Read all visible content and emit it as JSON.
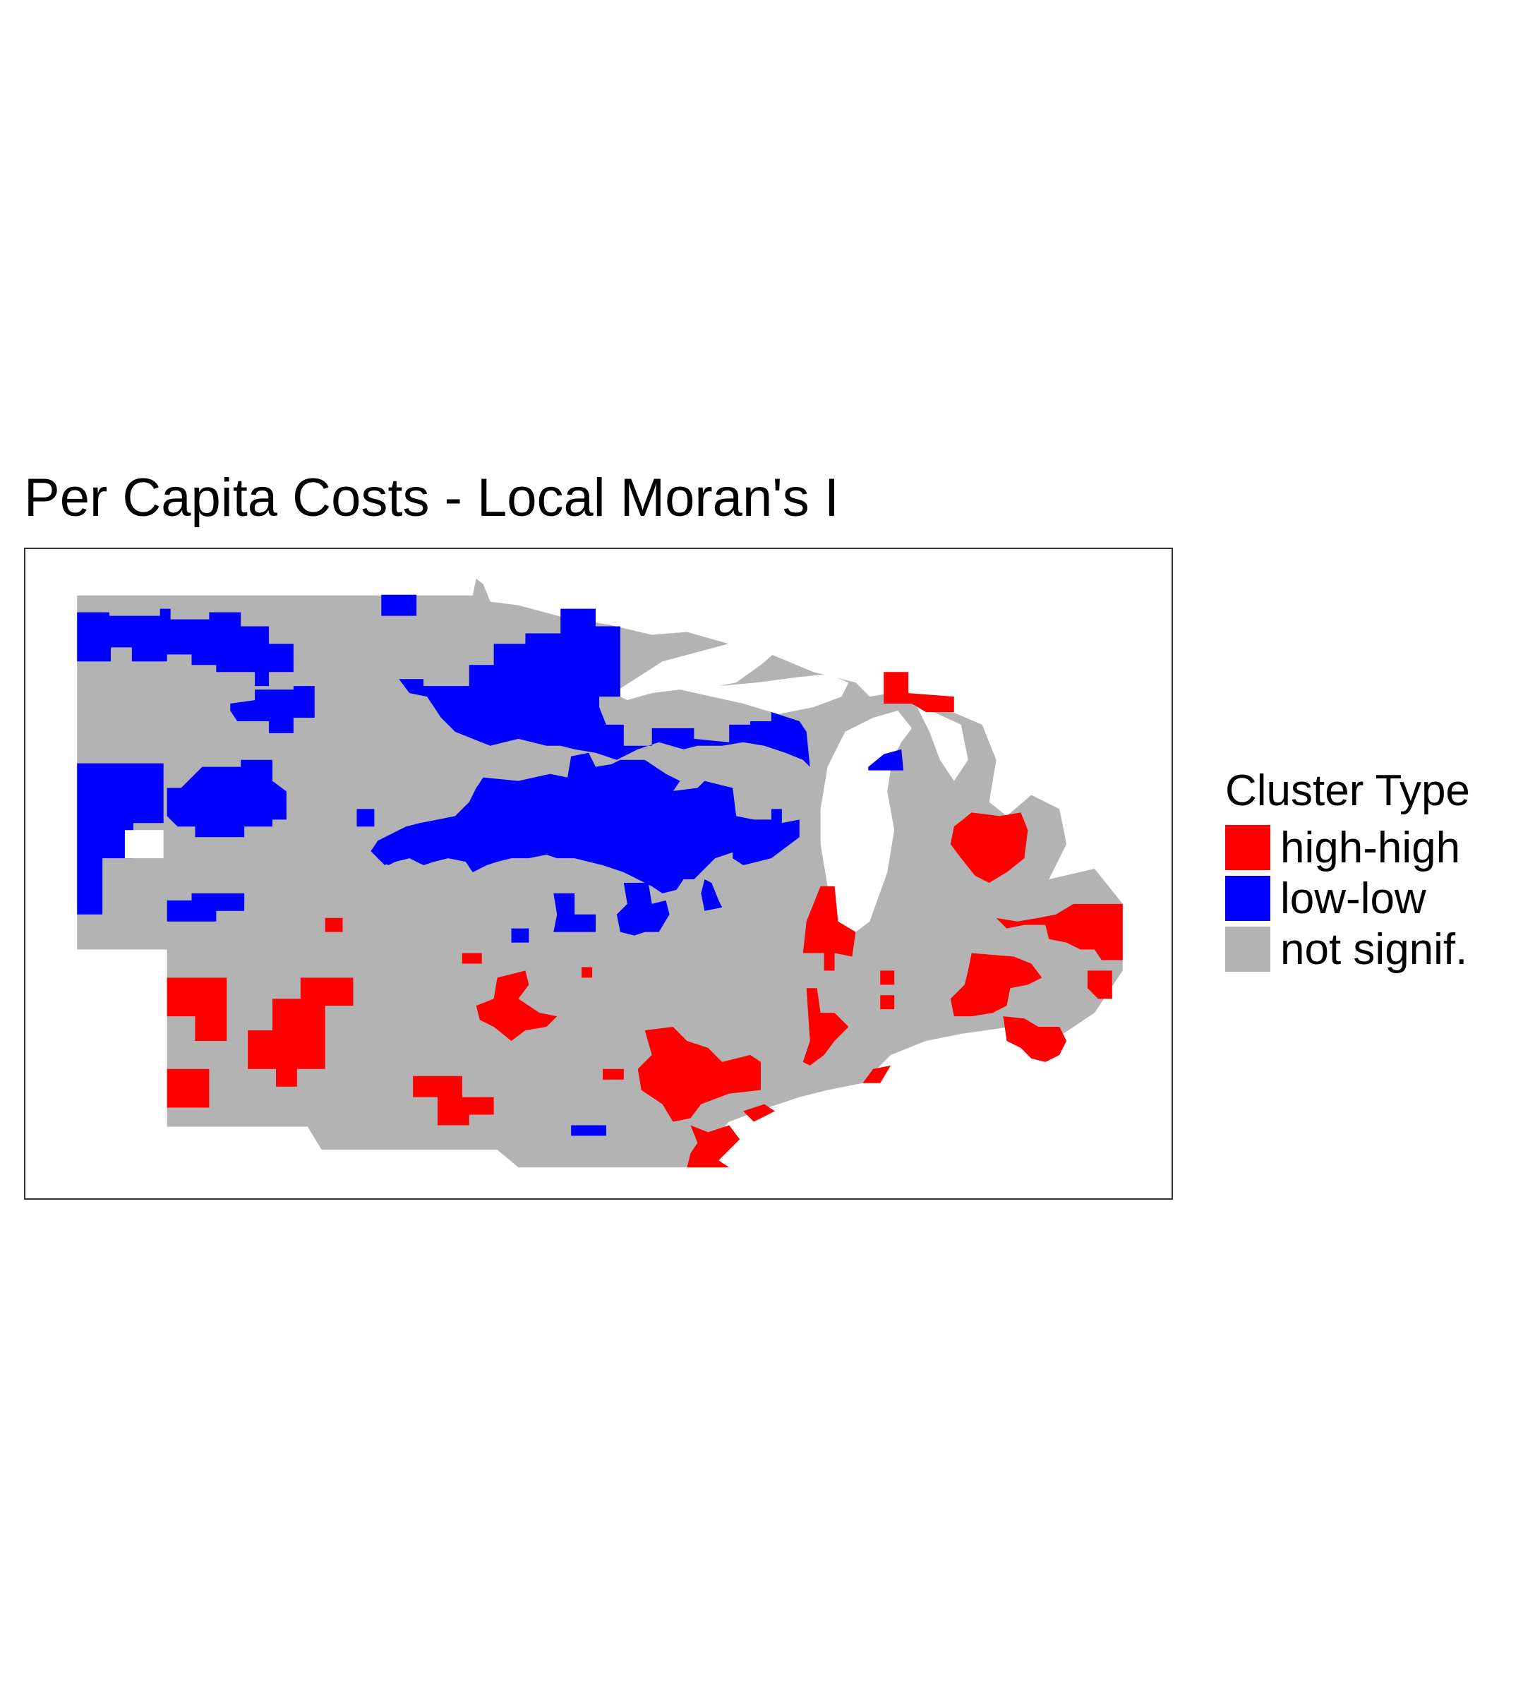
{
  "title": "Per Capita Costs - Local Moran's I",
  "legend": {
    "title": "Cluster Type",
    "items": [
      {
        "label": "high-high",
        "color": "#ff0000"
      },
      {
        "label": "low-low",
        "color": "#0000ff"
      },
      {
        "label": "not signif.",
        "color": "#b3b3b3"
      }
    ]
  },
  "colors": {
    "background": "#ffffff",
    "frame": "#333333",
    "water": "#ffffff"
  }
}
